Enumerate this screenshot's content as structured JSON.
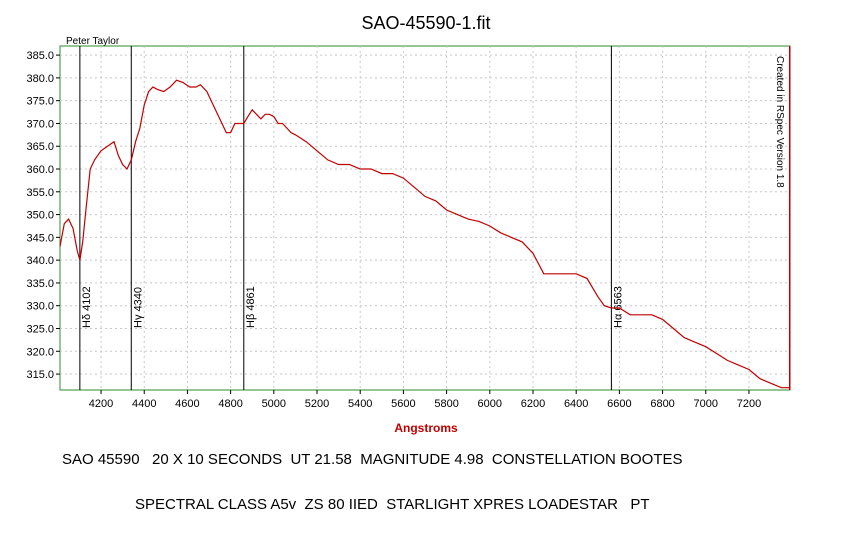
{
  "chart_data": {
    "type": "line",
    "title": "SAO-45590-1.fit",
    "author": "Peter Taylor",
    "software_note": "Created in RSpec Version 1.8",
    "xlabel": "Angstroms",
    "ylabel": "",
    "xlim": [
      4010,
      7390
    ],
    "ylim": [
      311.5,
      387
    ],
    "x_ticks": [
      "4200",
      "4400",
      "4600",
      "4800",
      "5000",
      "5200",
      "5400",
      "5600",
      "5800",
      "6000",
      "6200",
      "6400",
      "6600",
      "6800",
      "7000",
      "7200"
    ],
    "y_ticks": [
      "315.0",
      "320.0",
      "325.0",
      "330.0",
      "335.0",
      "340.0",
      "345.0",
      "350.0",
      "355.0",
      "360.0",
      "365.0",
      "370.0",
      "375.0",
      "380.0",
      "385.0"
    ],
    "grid": true,
    "line_color": "#c00000",
    "reference_lines": [
      {
        "label": "Hδ 4102",
        "x": 4102
      },
      {
        "label": "Hγ 4340",
        "x": 4340
      },
      {
        "label": "Hβ 4861",
        "x": 4861
      },
      {
        "label": "Hα 6563",
        "x": 6563
      }
    ],
    "series": [
      {
        "x": [
          4010,
          4030,
          4050,
          4070,
          4090,
          4102,
          4115,
          4130,
          4150,
          4170,
          4200,
          4230,
          4260,
          4280,
          4300,
          4320,
          4340,
          4360,
          4380,
          4400,
          4420,
          4440,
          4460,
          4490,
          4520,
          4550,
          4580,
          4610,
          4640,
          4660,
          4690,
          4720,
          4750,
          4780,
          4800,
          4820,
          4840,
          4861,
          4880,
          4900,
          4920,
          4940,
          4960,
          4980,
          5000,
          5020,
          5040,
          5060,
          5080,
          5100,
          5150,
          5200,
          5250,
          5300,
          5350,
          5400,
          5450,
          5500,
          5550,
          5600,
          5650,
          5700,
          5750,
          5800,
          5850,
          5900,
          5950,
          6000,
          6050,
          6100,
          6150,
          6200,
          6250,
          6300,
          6350,
          6400,
          6450,
          6500,
          6530,
          6563,
          6600,
          6650,
          6700,
          6750,
          6800,
          6850,
          6900,
          6950,
          7000,
          7050,
          7100,
          7150,
          7200,
          7250,
          7300,
          7350,
          7390
        ],
        "y": [
          343,
          348,
          349,
          347,
          342,
          340,
          344,
          351,
          360,
          362,
          364,
          365,
          366,
          363,
          361,
          360,
          362,
          366,
          369,
          374,
          377,
          378,
          377.5,
          377,
          378,
          379.5,
          379,
          378,
          378,
          378.5,
          377,
          374,
          371,
          368,
          368,
          370,
          370,
          370,
          371.5,
          373,
          372,
          371,
          372,
          372,
          371.5,
          370,
          370,
          369,
          368,
          367.5,
          366,
          364,
          362,
          361,
          361,
          360,
          360,
          359,
          359,
          358,
          356,
          354,
          353,
          351,
          350,
          349,
          348.5,
          347.5,
          346,
          345,
          344,
          341.5,
          337,
          337,
          337,
          337,
          336,
          332,
          330,
          329.5,
          329.5,
          328,
          328,
          328,
          327,
          325,
          323,
          322,
          321,
          319.5,
          318,
          317,
          316,
          314,
          313,
          312,
          312
        ]
      }
    ]
  },
  "captions": {
    "line1": "SAO 45590   20 X 10 SECONDS  UT 21.58  MAGNITUDE 4.98  CONSTELLATION BOOTES",
    "line2": "SPECTRAL CLASS A5v  ZS 80 IIED  STARLIGHT XPRES LOADESTAR   PT"
  }
}
